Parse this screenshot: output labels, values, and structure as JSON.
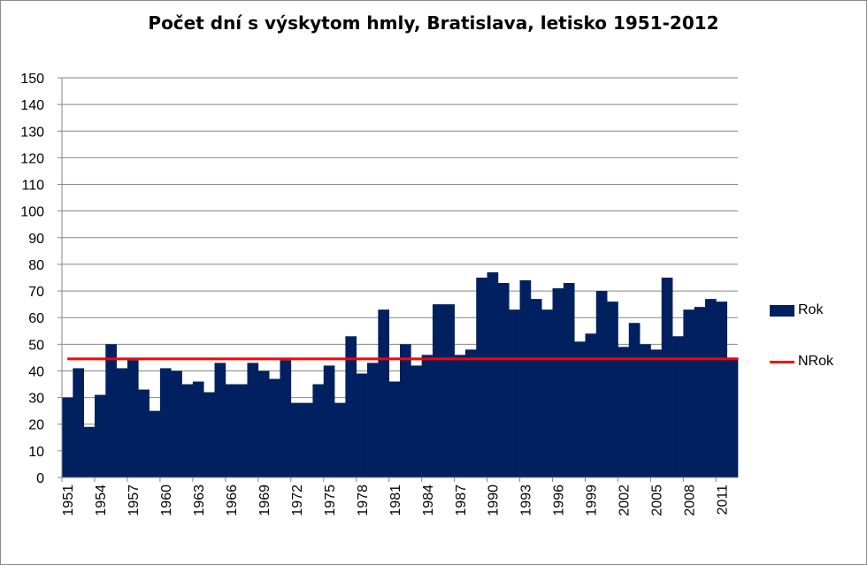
{
  "chart_data": {
    "type": "bar",
    "title": "Počet dní s výskytom hmly, Bratislava, letisko 1951-2012",
    "xlabel": "",
    "ylabel": "",
    "ylim": [
      0,
      150
    ],
    "yticks": [
      0,
      10,
      20,
      30,
      40,
      50,
      60,
      70,
      80,
      90,
      100,
      110,
      120,
      130,
      140,
      150
    ],
    "grid": true,
    "legend_position": "right",
    "categories": [
      1951,
      1952,
      1953,
      1954,
      1955,
      1956,
      1957,
      1958,
      1959,
      1960,
      1961,
      1962,
      1963,
      1964,
      1965,
      1966,
      1967,
      1968,
      1969,
      1970,
      1971,
      1972,
      1973,
      1974,
      1975,
      1976,
      1977,
      1978,
      1979,
      1980,
      1981,
      1982,
      1983,
      1984,
      1985,
      1986,
      1987,
      1988,
      1989,
      1990,
      1991,
      1992,
      1993,
      1994,
      1995,
      1996,
      1997,
      1998,
      1999,
      2000,
      2001,
      2002,
      2003,
      2004,
      2005,
      2006,
      2007,
      2008,
      2009,
      2010,
      2011,
      2012
    ],
    "xtick_labels": [
      "1951",
      "1954",
      "1957",
      "1960",
      "1963",
      "1966",
      "1969",
      "1972",
      "1975",
      "1978",
      "1981",
      "1984",
      "1987",
      "1990",
      "1993",
      "1996",
      "1999",
      "2002",
      "2005",
      "2008",
      "2011"
    ],
    "series": [
      {
        "name": "Rok",
        "type": "bar",
        "color": "#002060",
        "values": [
          30,
          41,
          19,
          31,
          50,
          41,
          44,
          33,
          25,
          41,
          40,
          35,
          36,
          32,
          43,
          35,
          35,
          43,
          40,
          37,
          44,
          28,
          28,
          35,
          42,
          28,
          53,
          39,
          43,
          63,
          36,
          50,
          42,
          46,
          65,
          65,
          46,
          48,
          75,
          77,
          73,
          63,
          74,
          67,
          63,
          71,
          73,
          51,
          54,
          70,
          66,
          49,
          58,
          50,
          48,
          75,
          53,
          63,
          64,
          67,
          66,
          45
        ]
      },
      {
        "name": "NRok",
        "type": "line",
        "color": "#ff0000",
        "value": 44.5
      }
    ]
  }
}
